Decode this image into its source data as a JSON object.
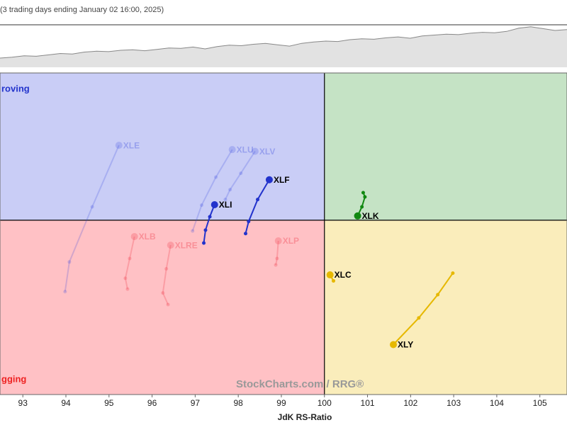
{
  "chart_data": [
    {
      "type": "area",
      "title": "(3 trading days ending January 02 16:00, 2025)",
      "color": "#888888",
      "fill": "#e2e2e2",
      "values": [
        20,
        22,
        25,
        24,
        27,
        30,
        29,
        33,
        35,
        34,
        37,
        38,
        36,
        39,
        42,
        41,
        44,
        40,
        45,
        48,
        47,
        50,
        52,
        49,
        46,
        52,
        55,
        57,
        56,
        60,
        62,
        61,
        64,
        66,
        63,
        68,
        70,
        72,
        71,
        74,
        76,
        75,
        78,
        85,
        88,
        84,
        80,
        82
      ],
      "ylim": [
        0,
        100
      ]
    },
    {
      "type": "rrg",
      "x_label": "JdK RS-Ratio",
      "watermark": "StockCharts.com / RRG®",
      "quadrant_labels": [
        "roving",
        "gging"
      ],
      "quadrant_colors": {
        "improving": "#c9cdf6",
        "leading": "#c5e3c5",
        "weakening": "#faedbb",
        "lagging": "#ffc1c5"
      },
      "xlim": [
        92.47,
        105.63
      ],
      "ylim": [
        95.95,
        103.42
      ],
      "center": 100,
      "xticks": [
        93,
        94,
        95,
        96,
        97,
        98,
        99,
        100,
        101,
        102,
        103,
        104,
        105
      ],
      "series": [
        {
          "name": "XLE",
          "color": "#3344dd",
          "opacity": 0.22,
          "x": [
            93.98,
            94.08,
            94.61,
            95.23
          ],
          "y": [
            98.34,
            99.03,
            100.31,
            101.74
          ]
        },
        {
          "name": "XLU",
          "color": "#3344dd",
          "opacity": 0.22,
          "x": [
            96.94,
            97.15,
            97.48,
            97.86
          ],
          "y": [
            99.75,
            100.35,
            101.0,
            101.64
          ]
        },
        {
          "name": "XLV",
          "color": "#3344dd",
          "opacity": 0.22,
          "x": [
            97.7,
            97.81,
            98.06,
            98.39
          ],
          "y": [
            100.48,
            100.71,
            101.09,
            101.6
          ]
        },
        {
          "name": "XLF",
          "color": "#2233cc",
          "opacity": 1,
          "x": [
            98.17,
            98.24,
            98.45,
            98.72
          ],
          "y": [
            99.69,
            99.97,
            100.48,
            100.94
          ]
        },
        {
          "name": "XLI",
          "color": "#2233cc",
          "opacity": 1,
          "x": [
            97.2,
            97.24,
            97.34,
            97.45
          ],
          "y": [
            99.47,
            99.77,
            100.08,
            100.36
          ]
        },
        {
          "name": "XLK",
          "color": "#118811",
          "opacity": 1,
          "x": [
            100.9,
            100.94,
            100.87,
            100.77
          ],
          "y": [
            100.64,
            100.54,
            100.31,
            100.1
          ]
        },
        {
          "name": "XLB",
          "color": "#ee3344",
          "opacity": 0.25,
          "x": [
            95.43,
            95.38,
            95.48,
            95.59
          ],
          "y": [
            98.4,
            98.65,
            99.11,
            99.62
          ]
        },
        {
          "name": "XLRE",
          "color": "#ee3344",
          "opacity": 0.25,
          "x": [
            96.37,
            96.25,
            96.33,
            96.43
          ],
          "y": [
            98.04,
            98.31,
            98.87,
            99.42
          ]
        },
        {
          "name": "XLP",
          "color": "#ee3344",
          "opacity": 0.25,
          "x": [
            98.87,
            98.9,
            98.93
          ],
          "y": [
            98.96,
            99.11,
            99.52
          ]
        },
        {
          "name": "XLC",
          "color": "#e6b800",
          "opacity": 1,
          "x": [
            100.21,
            100.13
          ],
          "y": [
            98.59,
            98.73
          ]
        },
        {
          "name": "XLY",
          "color": "#e6b800",
          "opacity": 1,
          "x": [
            102.98,
            102.63,
            102.19,
            101.6
          ],
          "y": [
            98.77,
            98.27,
            97.73,
            97.11
          ]
        }
      ]
    }
  ]
}
